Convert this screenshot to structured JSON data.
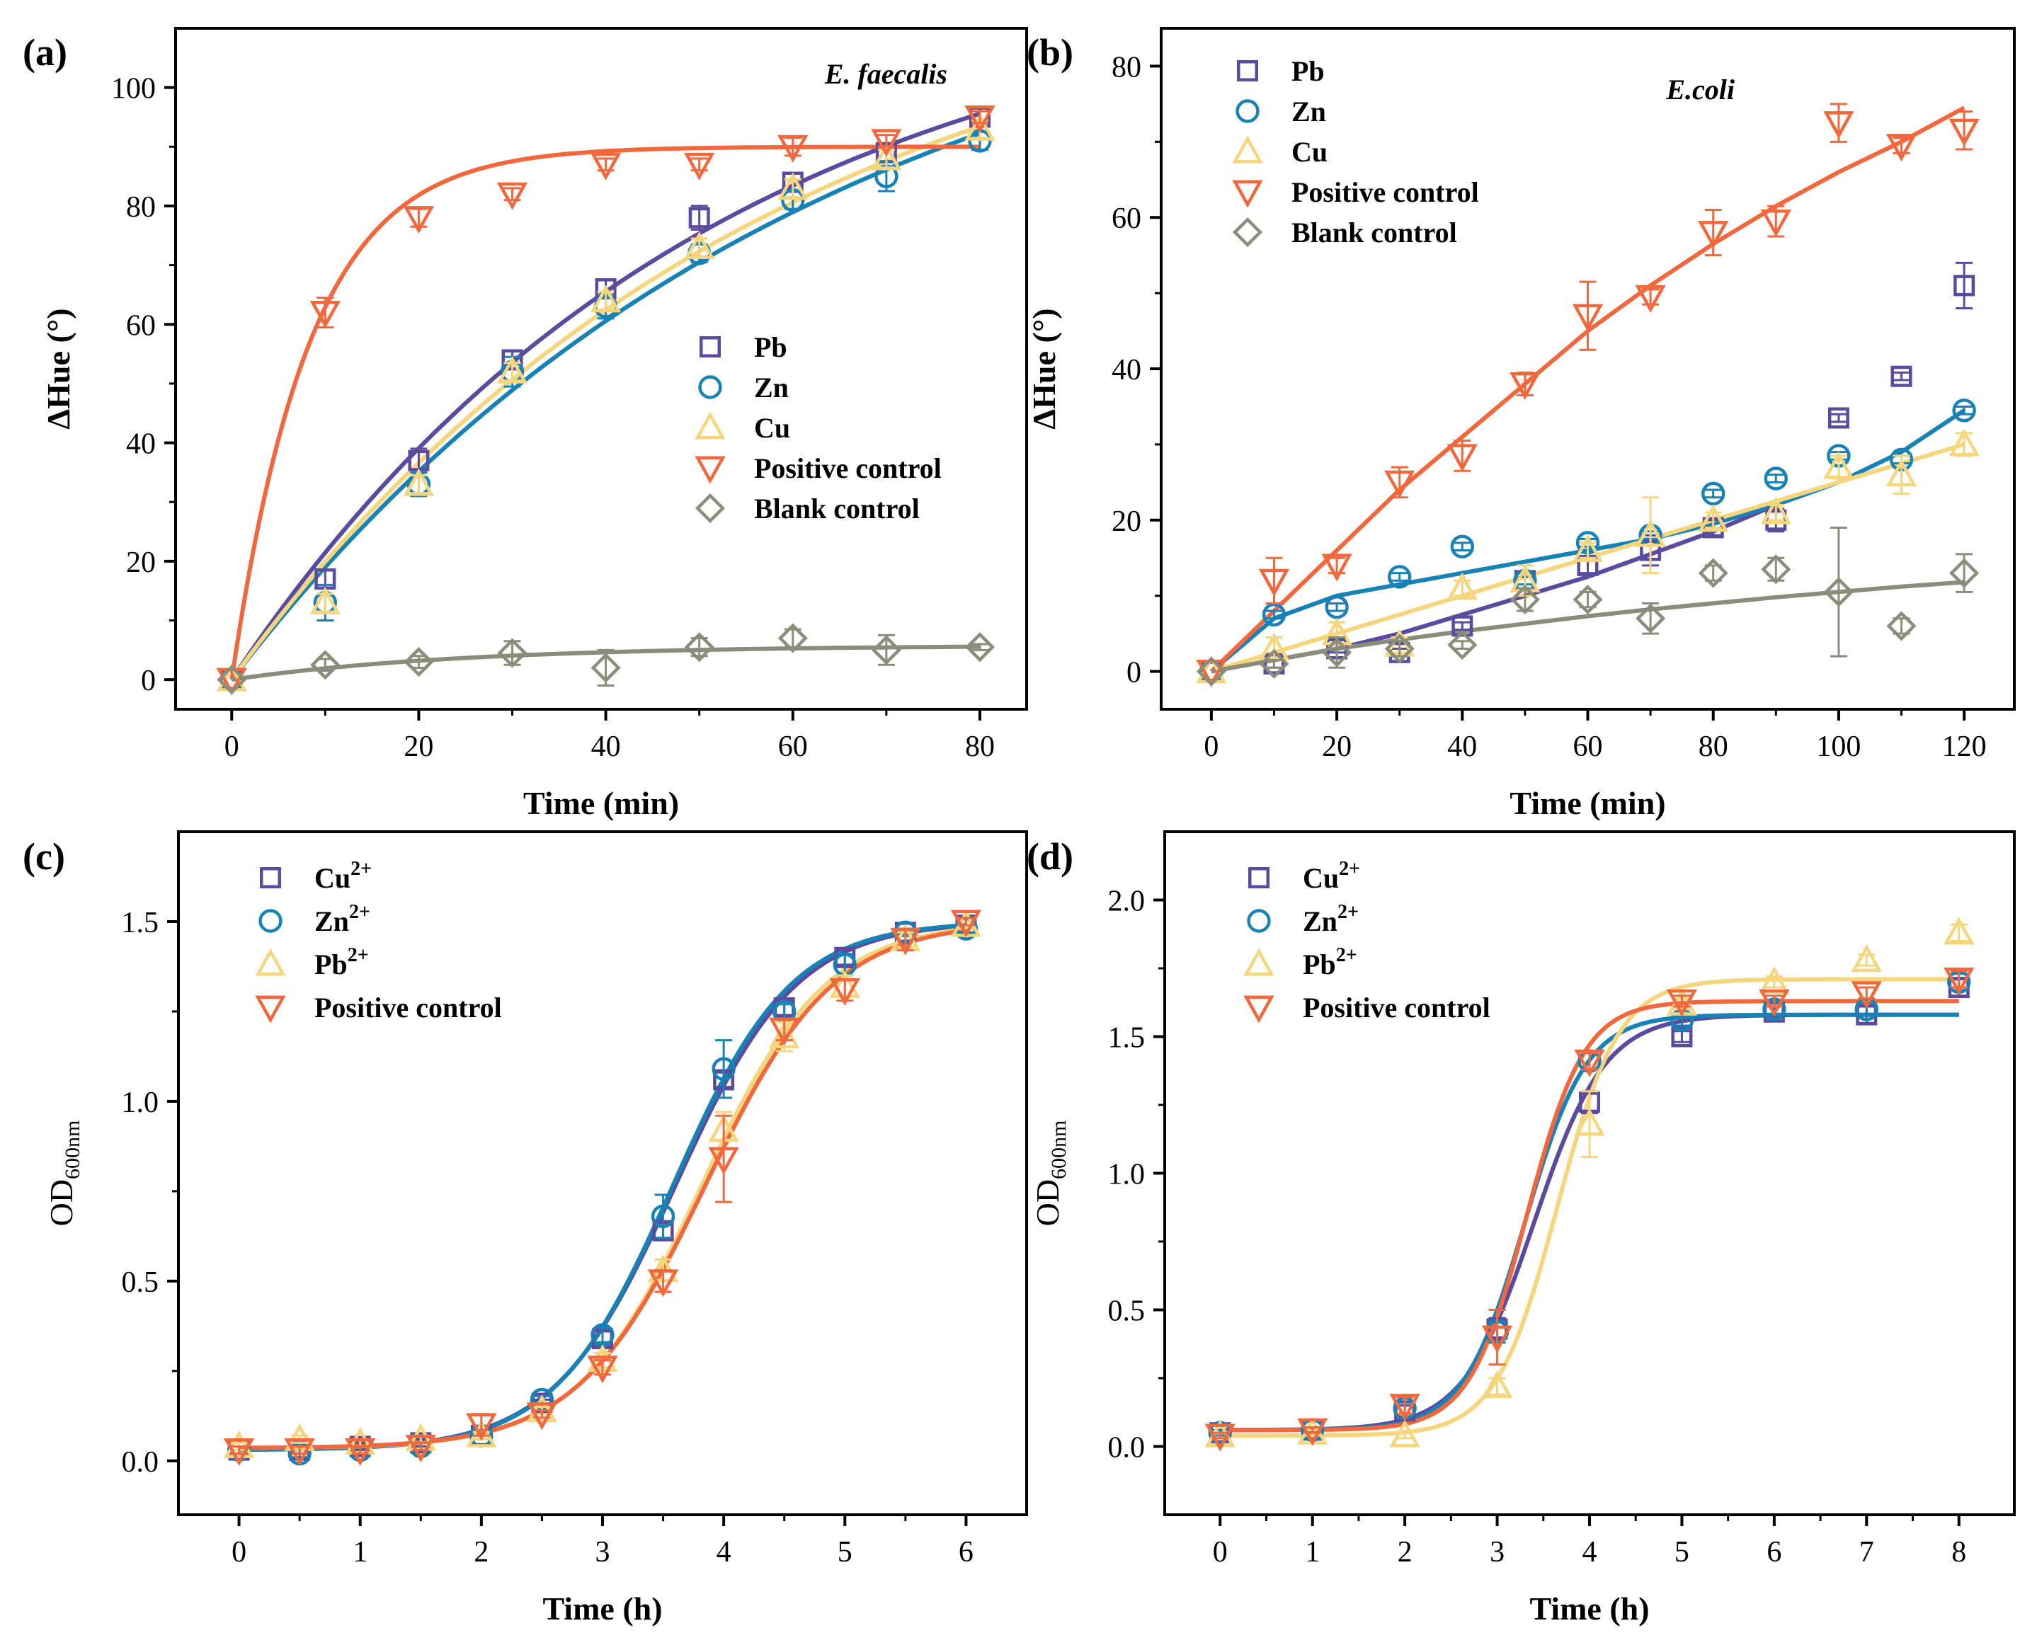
{
  "chart_data": [
    {
      "id": "a",
      "type": "scatter",
      "panel_label": "(a)",
      "title": "E. faecalis",
      "xlabel": "Time (min)",
      "ylabel": "ΔHue (°)",
      "xlim": [
        -6,
        85
      ],
      "ylim": [
        -5,
        110
      ],
      "xticks": [
        0,
        20,
        40,
        60,
        80
      ],
      "yticks": [
        0,
        20,
        40,
        60,
        80,
        100
      ],
      "legend_position": "center-right",
      "x": [
        0,
        10,
        20,
        30,
        40,
        50,
        60,
        70,
        80
      ],
      "series": [
        {
          "name": "Pb",
          "marker": "square",
          "color": "#5B4AA0",
          "values": [
            0,
            17,
            37,
            54,
            66,
            78,
            84,
            89,
            95
          ],
          "errors": [
            0,
            1.5,
            2,
            1.5,
            1.5,
            2,
            1.5,
            1.5,
            1.5
          ],
          "fit_rate": 0.0195,
          "fit_max": 121
        },
        {
          "name": "Zn",
          "marker": "circle",
          "color": "#1782B6",
          "values": [
            0,
            13,
            33,
            52,
            63,
            72,
            81,
            85,
            91
          ],
          "errors": [
            0,
            3,
            2,
            2.5,
            2,
            1.5,
            1.5,
            2.5,
            1.5
          ],
          "fit_rate": 0.0162,
          "fit_max": 127
        },
        {
          "name": "Cu",
          "marker": "triangle-up",
          "color": "#F6D67D",
          "values": [
            0,
            13,
            33,
            52,
            64,
            73,
            83,
            88,
            93
          ],
          "errors": [
            0,
            1.5,
            1.5,
            1.5,
            1.5,
            1.5,
            1.5,
            1.5,
            1.5
          ],
          "fit_rate": 0.0175,
          "fit_max": 124
        },
        {
          "name": "Positive control",
          "marker": "triangle-down",
          "color": "#F2683C",
          "values": [
            0,
            62,
            78,
            82,
            87,
            87,
            90,
            91,
            95
          ],
          "errors": [
            0,
            2.5,
            1.5,
            1,
            1,
            1,
            1.5,
            1,
            1
          ],
          "fit_rate": 0.12,
          "fit_max": 90
        },
        {
          "name": "Blank control",
          "marker": "diamond",
          "color": "#8C8C7A",
          "values": [
            0,
            2.5,
            3,
            4.5,
            2,
            5.5,
            7,
            5,
            5.5
          ],
          "errors": [
            0,
            1,
            1,
            2,
            3,
            1.5,
            1.5,
            2.5,
            0.5
          ],
          "fit_rate": 0.04,
          "fit_max": 5.8
        }
      ]
    },
    {
      "id": "b",
      "type": "scatter",
      "panel_label": "(b)",
      "title": "E.coli",
      "xlabel": "Time (min)",
      "ylabel": "ΔHue (°)",
      "xlim": [
        -8,
        128
      ],
      "ylim": [
        -5,
        85
      ],
      "xticks": [
        0,
        20,
        40,
        60,
        80,
        100,
        120
      ],
      "yticks": [
        0,
        20,
        40,
        60,
        80
      ],
      "legend_position": "top-left",
      "x": [
        0,
        10,
        20,
        30,
        40,
        50,
        60,
        70,
        80,
        90,
        100,
        110,
        120
      ],
      "series": [
        {
          "name": "Pb",
          "marker": "square",
          "color": "#5B4AA0",
          "values": [
            0,
            1,
            3,
            2.5,
            6,
            12,
            14,
            16,
            19,
            20,
            33.5,
            39,
            51
          ],
          "errors": [
            0,
            0.5,
            0.5,
            0.5,
            0.5,
            1,
            1,
            2,
            1,
            1.5,
            0.5,
            0.5,
            3
          ],
          "fit": [
            [
              0,
              0
            ],
            [
              10,
              1.5
            ],
            [
              20,
              3
            ],
            [
              30,
              5
            ],
            [
              40,
              7.5
            ],
            [
              50,
              10
            ],
            [
              60,
              12.5
            ],
            [
              70,
              15.5
            ],
            [
              80,
              18.5
            ],
            [
              90,
              22
            ]
          ]
        },
        {
          "name": "Zn",
          "marker": "circle",
          "color": "#1782B6",
          "values": [
            0,
            7.5,
            8.5,
            12.5,
            16.5,
            12,
            17,
            18,
            23.5,
            25.5,
            28.5,
            28,
            34.5
          ],
          "errors": [
            0,
            0.5,
            0.5,
            0.5,
            0.5,
            0.5,
            0.5,
            0.5,
            0.5,
            0.5,
            0.5,
            0.5,
            0.5
          ],
          "fit": [
            [
              0,
              0
            ],
            [
              10,
              7
            ],
            [
              20,
              10
            ],
            [
              30,
              11.5
            ],
            [
              40,
              13
            ],
            [
              50,
              14.5
            ],
            [
              60,
              16
            ],
            [
              70,
              17.5
            ],
            [
              80,
              19.5
            ],
            [
              90,
              22
            ],
            [
              100,
              25
            ],
            [
              110,
              29
            ],
            [
              120,
              34.5
            ]
          ]
        },
        {
          "name": "Cu",
          "marker": "triangle-up",
          "color": "#F6D67D",
          "values": [
            0,
            3,
            5,
            3.5,
            11,
            12,
            16,
            18,
            20,
            21,
            27,
            26,
            30
          ],
          "errors": [
            0,
            1.5,
            1.5,
            1,
            1,
            2,
            1,
            5,
            1,
            1,
            1.5,
            2.5,
            1.5
          ],
          "fit": [
            [
              0,
              0
            ],
            [
              10,
              2.5
            ],
            [
              20,
              5
            ],
            [
              30,
              7.5
            ],
            [
              40,
              10
            ],
            [
              50,
              12.5
            ],
            [
              60,
              15
            ],
            [
              70,
              17.5
            ],
            [
              80,
              20
            ],
            [
              90,
              22.5
            ],
            [
              100,
              25
            ],
            [
              110,
              27.5
            ],
            [
              120,
              30
            ]
          ]
        },
        {
          "name": "Positive control",
          "marker": "triangle-down",
          "color": "#F2683C",
          "values": [
            0,
            12,
            14,
            25,
            28.5,
            38,
            47,
            49.5,
            58,
            59.5,
            72.5,
            69.5,
            71.5
          ],
          "errors": [
            0,
            3,
            1,
            2,
            2,
            1.5,
            4.5,
            1,
            3,
            2,
            2.5,
            1,
            2.5
          ],
          "fit": [
            [
              0,
              0
            ],
            [
              10,
              8
            ],
            [
              20,
              16
            ],
            [
              30,
              24
            ],
            [
              40,
              31
            ],
            [
              50,
              38
            ],
            [
              60,
              45
            ],
            [
              70,
              51
            ],
            [
              80,
              56.5
            ],
            [
              90,
              61.5
            ],
            [
              100,
              66
            ],
            [
              110,
              70
            ],
            [
              120,
              74.5
            ]
          ]
        },
        {
          "name": "Blank control",
          "marker": "diamond",
          "color": "#8C8C7A",
          "values": [
            0,
            1,
            2.5,
            3,
            3.5,
            9.5,
            9.5,
            7,
            13,
            13.5,
            10.5,
            6,
            13
          ],
          "errors": [
            0,
            0.5,
            2,
            1,
            0.5,
            1.5,
            1,
            2,
            1,
            1.5,
            8.5,
            1,
            2.5
          ],
          "fit": [
            [
              0,
              0
            ],
            [
              10,
              1.5
            ],
            [
              20,
              3
            ],
            [
              30,
              4.2
            ],
            [
              40,
              5.3
            ],
            [
              50,
              6.3
            ],
            [
              60,
              7.3
            ],
            [
              70,
              8.2
            ],
            [
              80,
              9
            ],
            [
              90,
              9.8
            ],
            [
              100,
              10.5
            ],
            [
              110,
              11.2
            ],
            [
              120,
              11.8
            ]
          ]
        }
      ]
    },
    {
      "id": "c",
      "type": "scatter",
      "panel_label": "(c)",
      "title": "",
      "xlabel": "Time (h)",
      "ylabel_main": "OD",
      "ylabel_sub": "600nm",
      "xlim": [
        -0.5,
        6.5
      ],
      "ylim": [
        -0.15,
        1.75
      ],
      "xticks": [
        0,
        1,
        2,
        3,
        4,
        5,
        6
      ],
      "yticks": [
        0.0,
        0.5,
        1.0,
        1.5
      ],
      "legend_position": "top-left",
      "x": [
        0,
        0.5,
        1,
        1.5,
        2,
        2.5,
        3,
        3.5,
        4,
        4.5,
        5,
        5.5,
        6
      ],
      "series": [
        {
          "name": "Cu",
          "sup": "2+",
          "marker": "square",
          "color": "#5B4AA0",
          "values": [
            0.03,
            0.03,
            0.04,
            0.05,
            0.07,
            0.16,
            0.34,
            0.64,
            1.06,
            1.26,
            1.4,
            1.47,
            1.49
          ],
          "errors": [
            0.01,
            0.01,
            0.01,
            0.01,
            0.01,
            0.01,
            0.02,
            0.02,
            0.02,
            0.02,
            0.02,
            0.01,
            0.01
          ],
          "fit_a": 0.03,
          "fit_k": 1.5,
          "fit_x0": 3.6,
          "fit_rate": 2.0
        },
        {
          "name": "Zn",
          "sup": "2+",
          "marker": "circle",
          "color": "#1782B6",
          "values": [
            0.03,
            0.02,
            0.03,
            0.04,
            0.07,
            0.17,
            0.35,
            0.68,
            1.09,
            1.25,
            1.38,
            1.47,
            1.48
          ],
          "errors": [
            0.01,
            0.01,
            0.01,
            0.01,
            0.01,
            0.01,
            0.02,
            0.06,
            0.08,
            0.02,
            0.03,
            0.01,
            0.01
          ],
          "fit_a": 0.03,
          "fit_k": 1.5,
          "fit_x0": 3.58,
          "fit_rate": 2.05
        },
        {
          "name": "Pb",
          "sup": "2+",
          "marker": "triangle-up",
          "color": "#F6D67D",
          "values": [
            0.04,
            0.06,
            0.05,
            0.06,
            0.07,
            0.14,
            0.28,
            0.53,
            0.92,
            1.18,
            1.32,
            1.45,
            1.49
          ],
          "errors": [
            0.01,
            0.01,
            0.01,
            0.01,
            0.01,
            0.01,
            0.02,
            0.03,
            0.05,
            0.04,
            0.03,
            0.02,
            0.01
          ],
          "fit_a": 0.035,
          "fit_k": 1.5,
          "fit_x0": 3.82,
          "fit_rate": 1.95
        },
        {
          "name": "Positive control",
          "sup": "",
          "marker": "triangle-down",
          "color": "#F2683C",
          "values": [
            0.03,
            0.03,
            0.03,
            0.04,
            0.1,
            0.13,
            0.26,
            0.5,
            0.84,
            1.2,
            1.31,
            1.45,
            1.5
          ],
          "errors": [
            0.01,
            0.01,
            0.01,
            0.01,
            0.03,
            0.01,
            0.02,
            0.03,
            0.12,
            0.03,
            0.03,
            0.03,
            0.01
          ],
          "fit_a": 0.035,
          "fit_k": 1.5,
          "fit_x0": 3.85,
          "fit_rate": 1.9
        }
      ]
    },
    {
      "id": "d",
      "type": "scatter",
      "panel_label": "(d)",
      "title": "",
      "xlabel": "Time (h)",
      "ylabel_main": "OD",
      "ylabel_sub": "600nm",
      "xlim": [
        -0.6,
        8.6
      ],
      "ylim": [
        -0.25,
        2.25
      ],
      "xticks": [
        0,
        1,
        2,
        3,
        4,
        5,
        6,
        7,
        8
      ],
      "yticks": [
        0.0,
        0.5,
        1.0,
        1.5,
        2.0
      ],
      "legend_position": "top-left",
      "x": [
        0,
        1,
        2,
        3,
        4,
        5,
        6,
        7,
        8
      ],
      "series": [
        {
          "name": "Cu",
          "sup": "2+",
          "marker": "square",
          "color": "#5B4AA0",
          "values": [
            0.05,
            0.06,
            0.13,
            0.43,
            1.26,
            1.5,
            1.59,
            1.58,
            1.68
          ],
          "errors": [
            0.01,
            0.01,
            0.02,
            0.04,
            0.04,
            0.02,
            0.02,
            0.03,
            0.03
          ],
          "fit_a": 0.06,
          "fit_k": 1.58,
          "fit_x0": 3.4,
          "fit_rate": 2.6
        },
        {
          "name": "Zn",
          "sup": "2+",
          "marker": "circle",
          "color": "#1782B6",
          "values": [
            0.05,
            0.06,
            0.14,
            0.42,
            1.41,
            1.56,
            1.6,
            1.6,
            1.7
          ],
          "errors": [
            0.01,
            0.01,
            0.02,
            0.04,
            0.03,
            0.02,
            0.02,
            0.02,
            0.03
          ],
          "fit_a": 0.06,
          "fit_k": 1.58,
          "fit_x0": 3.3,
          "fit_rate": 3.0
        },
        {
          "name": "Pb",
          "sup": "2+",
          "marker": "triangle-up",
          "color": "#F6D67D",
          "values": [
            0.04,
            0.05,
            0.04,
            0.22,
            1.18,
            1.62,
            1.7,
            1.78,
            1.88
          ],
          "errors": [
            0.01,
            0.01,
            0.01,
            0.03,
            0.12,
            0.02,
            0.02,
            0.02,
            0.03
          ],
          "fit_a": 0.04,
          "fit_k": 1.71,
          "fit_x0": 3.65,
          "fit_rate": 3.0
        },
        {
          "name": "Positive control",
          "sup": "",
          "marker": "triangle-down",
          "color": "#F2683C",
          "values": [
            0.04,
            0.06,
            0.15,
            0.4,
            1.41,
            1.63,
            1.63,
            1.66,
            1.71
          ],
          "errors": [
            0.01,
            0.01,
            0.03,
            0.1,
            0.03,
            0.02,
            0.02,
            0.02,
            0.03
          ],
          "fit_a": 0.06,
          "fit_k": 1.63,
          "fit_x0": 3.32,
          "fit_rate": 3.2
        }
      ]
    }
  ]
}
